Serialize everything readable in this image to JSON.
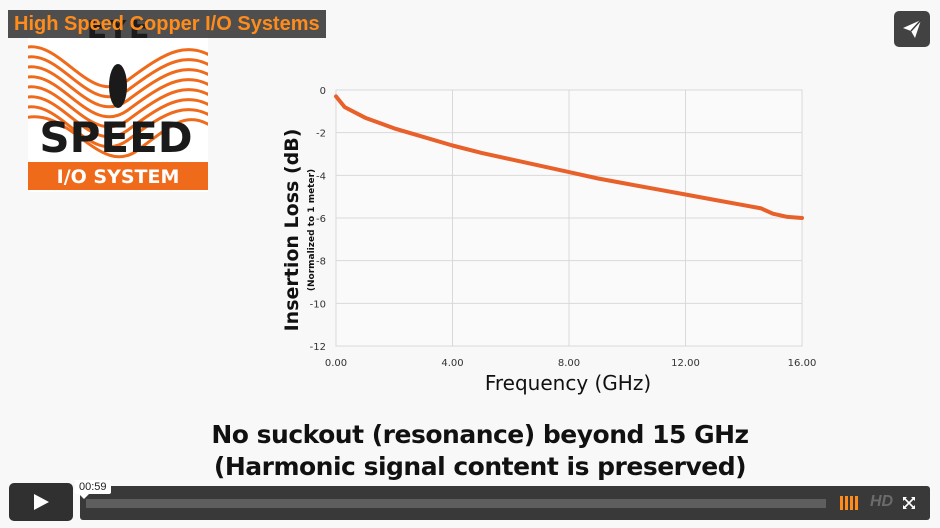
{
  "video": {
    "title": "High Speed Copper I/O Systems",
    "current_time": "00:59",
    "hd_label": "HD"
  },
  "logo": {
    "line1": "EYE",
    "line2": "SPEED",
    "line3": "I/O SYSTEM",
    "colors": {
      "orange": "#ef6a1a",
      "dark": "#1a1a1a",
      "background": "#ffffff"
    }
  },
  "caption": {
    "line1": "No suckout (resonance) beyond 15 GHz",
    "line2": "(Harmonic signal content is preserved)"
  },
  "icons": {
    "share": "paper-plane-icon",
    "play": "play-icon",
    "volume": "volume-bars-icon",
    "fullscreen": "fullscreen-icon"
  },
  "colors": {
    "accent": "#ff8c1a",
    "curve": "#e8602a",
    "controls_bg": "#1e1e1e"
  },
  "chart_data": {
    "type": "line",
    "title": "",
    "xlabel": "Frequency (GHz)",
    "ylabel": "Insertion Loss (dB)",
    "ylabel_sub": "(Normalized to 1 meter)",
    "xlim": [
      0,
      16
    ],
    "ylim": [
      -12,
      0
    ],
    "x_ticks": [
      "0.00",
      "4.00",
      "8.00",
      "12.00",
      "16.00"
    ],
    "y_ticks": [
      "0",
      "-2",
      "-4",
      "-6",
      "-8",
      "-10",
      "-12"
    ],
    "grid": true,
    "legend": "none",
    "series": [
      {
        "x": [
          0,
          0.3,
          1,
          2,
          3,
          4,
          5,
          6,
          7,
          8,
          9,
          10,
          11,
          12,
          13,
          14,
          14.6,
          15,
          15.5,
          16
        ],
        "y": [
          -0.3,
          -0.8,
          -1.3,
          -1.8,
          -2.2,
          -2.6,
          -2.95,
          -3.25,
          -3.55,
          -3.85,
          -4.15,
          -4.4,
          -4.65,
          -4.9,
          -5.15,
          -5.4,
          -5.55,
          -5.8,
          -5.95,
          -6.0
        ]
      }
    ]
  }
}
